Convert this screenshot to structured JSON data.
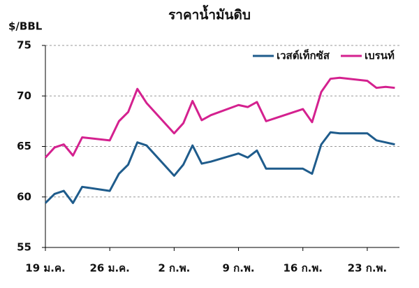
{
  "chart_data": {
    "type": "line",
    "title": "ราคาน้ำมันดิบ",
    "y_label": "$/BBL",
    "x": [
      0,
      1,
      2,
      3,
      4,
      7,
      8,
      9,
      10,
      11,
      14,
      15,
      16,
      17,
      18,
      21,
      22,
      23,
      24,
      25,
      28,
      29,
      30,
      31,
      32,
      35,
      36,
      37,
      38
    ],
    "series": [
      {
        "name": "เวสต์เท็กซัส",
        "color": "#1f5c8c",
        "values": [
          59.4,
          60.3,
          60.6,
          59.4,
          61.0,
          60.6,
          62.3,
          63.2,
          65.4,
          65.1,
          62.1,
          63.2,
          65.1,
          63.3,
          63.5,
          64.3,
          63.9,
          64.6,
          62.8,
          62.8,
          62.8,
          62.3,
          65.2,
          66.4,
          66.3,
          66.3,
          65.6,
          65.4,
          65.2
        ]
      },
      {
        "name": "เบรนท์",
        "color": "#d4218f",
        "values": [
          63.9,
          64.9,
          65.2,
          64.1,
          65.9,
          65.6,
          67.5,
          68.4,
          70.7,
          69.3,
          66.3,
          67.3,
          69.5,
          67.6,
          68.1,
          69.1,
          68.9,
          69.4,
          67.5,
          67.8,
          68.7,
          67.4,
          70.4,
          71.7,
          71.8,
          71.5,
          70.8,
          70.9,
          70.8
        ]
      }
    ],
    "xlim": [
      0,
      38.5
    ],
    "xticks": [
      {
        "value": 0,
        "label": "19 ม.ค."
      },
      {
        "value": 7,
        "label": "26 ม.ค."
      },
      {
        "value": 14,
        "label": "2 ก.พ."
      },
      {
        "value": 21,
        "label": "9 ก.พ."
      },
      {
        "value": 28,
        "label": "16 ก.พ."
      },
      {
        "value": 35,
        "label": "23 ก.พ."
      }
    ],
    "ylim": [
      55,
      75
    ],
    "yticks": [
      55,
      60,
      65,
      70,
      75
    ],
    "grid": true,
    "legend": "top-right"
  }
}
